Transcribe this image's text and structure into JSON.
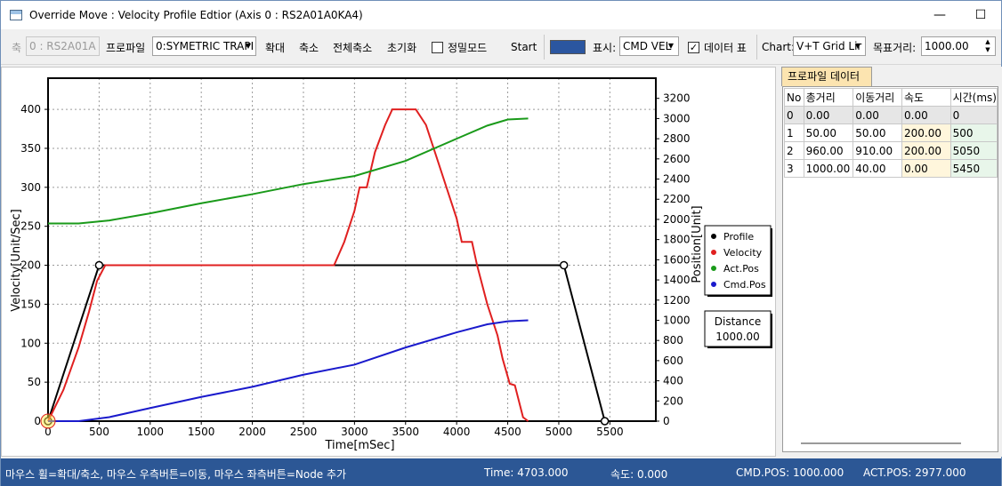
{
  "window": {
    "title": "Override Move : Velocity Profile Edtior (Axis 0 : RS2A01A0KA4)",
    "minimize_glyph": "—",
    "maximize_glyph": "☐",
    "close_glyph": "✕"
  },
  "toolbar": {
    "axis_label": "축",
    "axis_value": "0 : RS2A01A",
    "profile_label": "프로파일",
    "profile_value": "0:SYMETRIC TRAPI",
    "zoom_in": "확대",
    "zoom_out": "축소",
    "zoom_out_all": "전체축소",
    "reset": "초기화",
    "precision_mode_label": "정밀모드",
    "precision_mode_checked": false,
    "start": "Start",
    "color_swatch": "#2b56a0",
    "display_label": "표시:",
    "display_value": "CMD VEL",
    "data_table_label": "데이터 표",
    "data_table_checked": true,
    "chart_label": "Chart:",
    "chart_value": "V+T Grid Lir",
    "target_distance_label": "목표거리:",
    "target_distance_value": "1000.00"
  },
  "chart_data": {
    "type": "line",
    "xlabel": "Time[mSec]",
    "ylabel": "Velocity[Unit/Sec]",
    "y2label": "Position[Unit]",
    "xlim": [
      0,
      5950
    ],
    "ylim": [
      0,
      440
    ],
    "y2lim": [
      0,
      3400
    ],
    "x_ticks": [
      0,
      500,
      1000,
      1500,
      2000,
      2500,
      3000,
      3500,
      4000,
      4500,
      5000,
      5500
    ],
    "y_ticks": [
      0,
      50,
      100,
      150,
      200,
      250,
      300,
      350,
      400
    ],
    "y2_ticks": [
      0,
      200,
      400,
      600,
      800,
      1000,
      1200,
      1400,
      1600,
      1800,
      2000,
      2200,
      2400,
      2600,
      2800,
      3000,
      3200
    ],
    "grid": true,
    "legend_position": "right",
    "series": [
      {
        "name": "Profile",
        "axis": "left",
        "color": "#000000",
        "markers": true,
        "x": [
          0,
          500,
          5050,
          5450
        ],
        "y": [
          0,
          200,
          200,
          0
        ]
      },
      {
        "name": "Velocity",
        "axis": "left",
        "color": "#e02020",
        "x": [
          0,
          150,
          300,
          400,
          480,
          560,
          2800,
          2900,
          3000,
          3050,
          3120,
          3200,
          3300,
          3370,
          3600,
          3700,
          3800,
          3900,
          4000,
          4050,
          4150,
          4200,
          4300,
          4400,
          4450,
          4520,
          4570,
          4650,
          4700
        ],
        "y": [
          0,
          40,
          95,
          140,
          180,
          200,
          200,
          230,
          270,
          300,
          300,
          345,
          380,
          400,
          400,
          380,
          340,
          300,
          260,
          230,
          230,
          200,
          150,
          110,
          80,
          48,
          46,
          5,
          0
        ]
      },
      {
        "name": "Act.Pos",
        "axis": "right",
        "color": "#1a9a1a",
        "x": [
          0,
          300,
          600,
          1000,
          1500,
          2000,
          2500,
          3000,
          3500,
          4000,
          4300,
          4500,
          4700
        ],
        "y": [
          1960,
          1960,
          1990,
          2060,
          2160,
          2250,
          2350,
          2430,
          2580,
          2800,
          2930,
          2990,
          3000
        ]
      },
      {
        "name": "Cmd.Pos",
        "axis": "right",
        "color": "#1a1acc",
        "x": [
          0,
          300,
          600,
          1000,
          1500,
          2000,
          2500,
          3000,
          3500,
          4000,
          4300,
          4500,
          4700
        ],
        "y": [
          0,
          0,
          40,
          130,
          240,
          340,
          460,
          560,
          730,
          880,
          960,
          990,
          1000
        ]
      }
    ],
    "distance_box": {
      "label": "Distance",
      "value": "1000.00"
    }
  },
  "data_panel": {
    "tab_label": "프로파일 데이터",
    "columns": [
      "No",
      "총거리",
      "이동거리",
      "속도",
      "시간(ms)"
    ],
    "rows": [
      [
        "0",
        "0.00",
        "0.00",
        "0.00",
        "0"
      ],
      [
        "1",
        "50.00",
        "50.00",
        "200.00",
        "500"
      ],
      [
        "2",
        "960.00",
        "910.00",
        "200.00",
        "5050"
      ],
      [
        "3",
        "1000.00",
        "40.00",
        "0.00",
        "5450"
      ]
    ]
  },
  "statusbar": {
    "hint": "마우스 휠=확대/축소, 마우스 우측버튼=이동, 마우스 좌측버튼=Node 추가",
    "time": "Time: 4703.000",
    "speed": "속도: 0.000",
    "cmd_pos": "CMD.POS: 1000.000",
    "act_pos": "ACT.POS: 2977.000"
  }
}
